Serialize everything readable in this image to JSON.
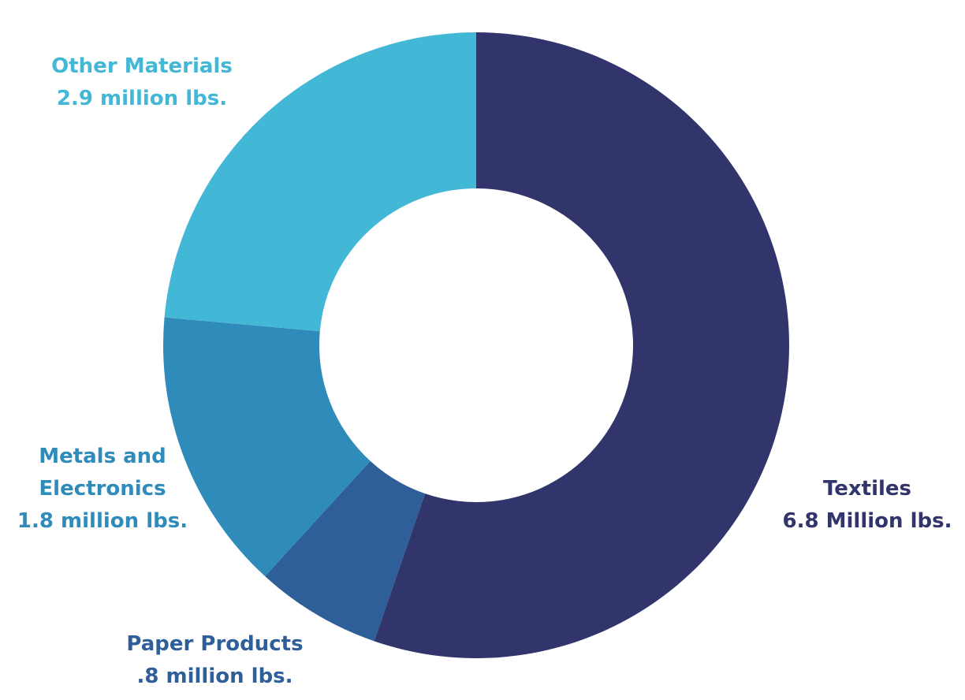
{
  "chart_data": {
    "type": "pie",
    "donut": true,
    "slices": [
      {
        "name": "Textiles",
        "value": 6.8,
        "unit": "Million lbs.",
        "label_lines": [
          "Textiles",
          "6.8 Million lbs."
        ],
        "color": "#31356b"
      },
      {
        "name": "Paper Products",
        "value": 0.8,
        "unit": "million lbs.",
        "label_lines": [
          "Paper Products",
          ".8 million lbs."
        ],
        "color": "#2f5f98"
      },
      {
        "name": "Metals and Electronics",
        "value": 1.8,
        "unit": "million lbs.",
        "label_lines": [
          "Metals and",
          "Electronics",
          "1.8 million lbs."
        ],
        "color": "#2e8bba"
      },
      {
        "name": "Other Materials",
        "value": 2.9,
        "unit": "million lbs.",
        "label_lines": [
          "Other Materials",
          "2.9 million lbs."
        ],
        "color": "#42b7d6"
      }
    ],
    "start": "12 o'clock",
    "direction": "clockwise"
  }
}
